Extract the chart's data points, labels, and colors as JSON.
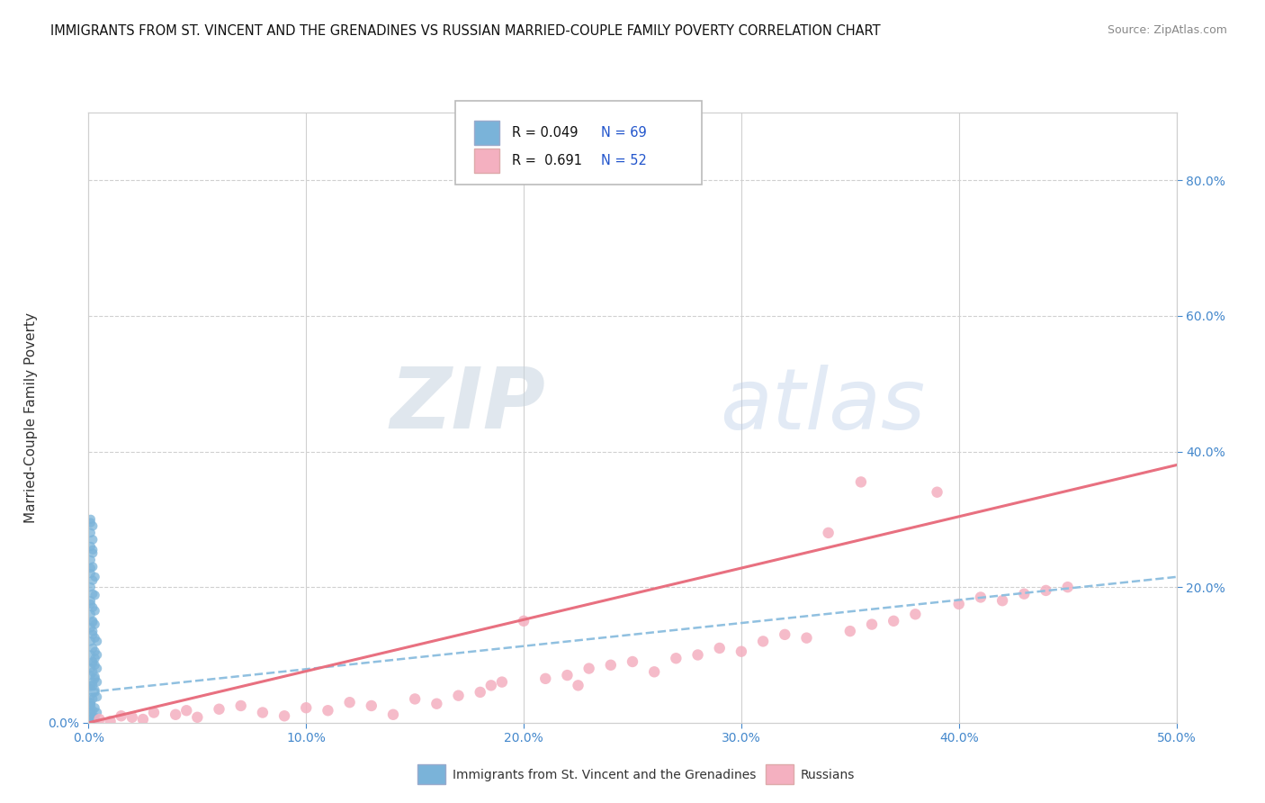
{
  "title": "IMMIGRANTS FROM ST. VINCENT AND THE GRENADINES VS RUSSIAN MARRIED-COUPLE FAMILY POVERTY CORRELATION CHART",
  "source": "Source: ZipAtlas.com",
  "ylabel": "Married-Couple Family Poverty",
  "legend_entries": [
    {
      "label_r": "R = 0.049",
      "label_n": "N = 69",
      "color": "#a8c4e0"
    },
    {
      "label_r": "R =  0.691",
      "label_n": "N = 52",
      "color": "#f4b8c4"
    }
  ],
  "legend_labels_bottom": [
    "Immigrants from St. Vincent and the Grenadines",
    "Russians"
  ],
  "xlim": [
    0.0,
    0.5
  ],
  "ylim": [
    0.0,
    0.9
  ],
  "xticks": [
    0.0,
    0.1,
    0.2,
    0.3,
    0.4,
    0.5
  ],
  "yticks_left": [
    0.0
  ],
  "yticks_right": [
    0.2,
    0.4,
    0.6,
    0.8
  ],
  "xticklabels": [
    "0.0%",
    "10.0%",
    "20.0%",
    "30.0%",
    "40.0%",
    "50.0%"
  ],
  "yticklabels_left": [
    "0.0%"
  ],
  "yticklabels_right": [
    "20.0%",
    "40.0%",
    "60.0%",
    "80.0%"
  ],
  "hgrid_ticks": [
    0.2,
    0.4,
    0.6,
    0.8
  ],
  "vgrid_ticks": [
    0.1,
    0.2,
    0.3,
    0.4,
    0.5
  ],
  "blue_scatter": [
    [
      0.001,
      0.005
    ],
    [
      0.002,
      0.002
    ],
    [
      0.001,
      0.012
    ],
    [
      0.001,
      0.025
    ],
    [
      0.002,
      0.018
    ],
    [
      0.001,
      0.03
    ],
    [
      0.003,
      0.008
    ],
    [
      0.001,
      0.04
    ],
    [
      0.002,
      0.035
    ],
    [
      0.001,
      0.05
    ],
    [
      0.003,
      0.022
    ],
    [
      0.002,
      0.06
    ],
    [
      0.001,
      0.07
    ],
    [
      0.003,
      0.045
    ],
    [
      0.002,
      0.055
    ],
    [
      0.001,
      0.08
    ],
    [
      0.004,
      0.015
    ],
    [
      0.002,
      0.09
    ],
    [
      0.001,
      0.1
    ],
    [
      0.003,
      0.065
    ],
    [
      0.002,
      0.11
    ],
    [
      0.001,
      0.12
    ],
    [
      0.004,
      0.038
    ],
    [
      0.002,
      0.13
    ],
    [
      0.001,
      0.14
    ],
    [
      0.003,
      0.085
    ],
    [
      0.002,
      0.15
    ],
    [
      0.001,
      0.16
    ],
    [
      0.004,
      0.06
    ],
    [
      0.002,
      0.17
    ],
    [
      0.001,
      0.18
    ],
    [
      0.003,
      0.105
    ],
    [
      0.002,
      0.19
    ],
    [
      0.001,
      0.2
    ],
    [
      0.004,
      0.08
    ],
    [
      0.002,
      0.21
    ],
    [
      0.001,
      0.22
    ],
    [
      0.003,
      0.125
    ],
    [
      0.002,
      0.23
    ],
    [
      0.001,
      0.24
    ],
    [
      0.004,
      0.1
    ],
    [
      0.002,
      0.25
    ],
    [
      0.001,
      0.26
    ],
    [
      0.003,
      0.145
    ],
    [
      0.002,
      0.27
    ],
    [
      0.001,
      0.28
    ],
    [
      0.004,
      0.12
    ],
    [
      0.002,
      0.29
    ],
    [
      0.001,
      0.3
    ],
    [
      0.003,
      0.165
    ],
    [
      0.002,
      0.008
    ],
    [
      0.001,
      0.016
    ],
    [
      0.003,
      0.003
    ],
    [
      0.002,
      0.045
    ],
    [
      0.001,
      0.055
    ],
    [
      0.003,
      0.095
    ],
    [
      0.002,
      0.135
    ],
    [
      0.001,
      0.175
    ],
    [
      0.003,
      0.215
    ],
    [
      0.002,
      0.255
    ],
    [
      0.001,
      0.295
    ],
    [
      0.003,
      0.068
    ],
    [
      0.002,
      0.148
    ],
    [
      0.001,
      0.228
    ],
    [
      0.003,
      0.188
    ],
    [
      0.002,
      0.075
    ],
    [
      0.001,
      0.028
    ],
    [
      0.003,
      0.048
    ],
    [
      0.002,
      0.088
    ]
  ],
  "pink_scatter": [
    [
      0.005,
      0.005
    ],
    [
      0.01,
      0.002
    ],
    [
      0.015,
      0.01
    ],
    [
      0.02,
      0.008
    ],
    [
      0.025,
      0.005
    ],
    [
      0.03,
      0.015
    ],
    [
      0.04,
      0.012
    ],
    [
      0.045,
      0.018
    ],
    [
      0.05,
      0.008
    ],
    [
      0.06,
      0.02
    ],
    [
      0.07,
      0.025
    ],
    [
      0.08,
      0.015
    ],
    [
      0.09,
      0.01
    ],
    [
      0.1,
      0.022
    ],
    [
      0.11,
      0.018
    ],
    [
      0.12,
      0.03
    ],
    [
      0.13,
      0.025
    ],
    [
      0.14,
      0.012
    ],
    [
      0.15,
      0.035
    ],
    [
      0.16,
      0.028
    ],
    [
      0.17,
      0.04
    ],
    [
      0.18,
      0.045
    ],
    [
      0.185,
      0.055
    ],
    [
      0.19,
      0.06
    ],
    [
      0.2,
      0.15
    ],
    [
      0.21,
      0.065
    ],
    [
      0.22,
      0.07
    ],
    [
      0.225,
      0.055
    ],
    [
      0.23,
      0.08
    ],
    [
      0.24,
      0.085
    ],
    [
      0.25,
      0.09
    ],
    [
      0.26,
      0.075
    ],
    [
      0.27,
      0.095
    ],
    [
      0.28,
      0.1
    ],
    [
      0.29,
      0.11
    ],
    [
      0.3,
      0.105
    ],
    [
      0.31,
      0.12
    ],
    [
      0.32,
      0.13
    ],
    [
      0.33,
      0.125
    ],
    [
      0.34,
      0.28
    ],
    [
      0.35,
      0.135
    ],
    [
      0.355,
      0.355
    ],
    [
      0.36,
      0.145
    ],
    [
      0.37,
      0.15
    ],
    [
      0.38,
      0.16
    ],
    [
      0.39,
      0.34
    ],
    [
      0.4,
      0.175
    ],
    [
      0.41,
      0.185
    ],
    [
      0.42,
      0.18
    ],
    [
      0.43,
      0.19
    ],
    [
      0.44,
      0.195
    ],
    [
      0.45,
      0.2
    ]
  ],
  "blue_trend_x": [
    0.0,
    0.5
  ],
  "blue_trend_y": [
    0.045,
    0.215
  ],
  "pink_trend_x": [
    0.0,
    0.5
  ],
  "pink_trend_y": [
    0.0,
    0.38
  ],
  "watermark_zip": "ZIP",
  "watermark_atlas": "atlas",
  "bg_color": "#ffffff",
  "grid_color": "#d0d0d0",
  "blue_scatter_color": "#7ab3d9",
  "pink_scatter_color": "#f4b0c0",
  "blue_line_color": "#90c0e0",
  "pink_line_color": "#e87080",
  "tick_color": "#4488cc",
  "ylabel_color": "#333333",
  "title_color": "#111111",
  "source_color": "#888888"
}
